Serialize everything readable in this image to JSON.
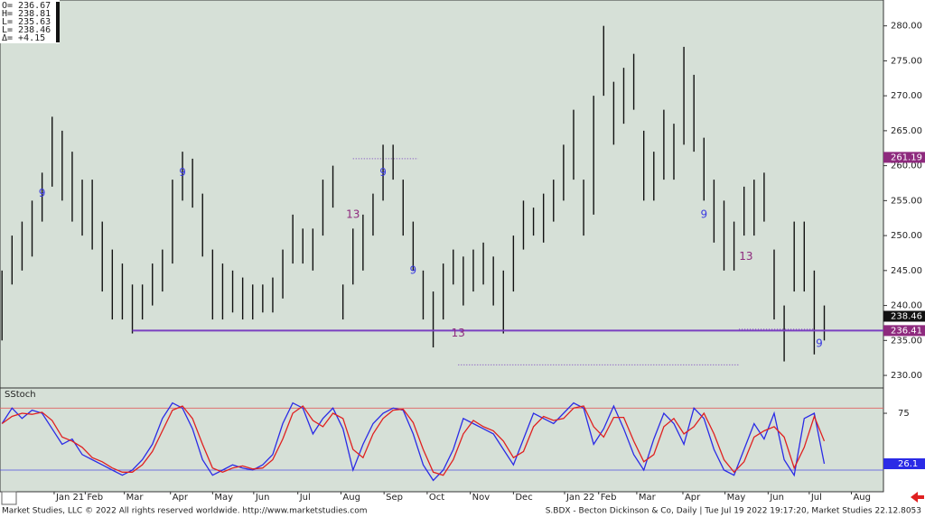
{
  "ohlc_box": [
    "O= 236.67",
    "H= 238.81",
    "L= 235.63",
    "L= 238.46",
    "Δ=  +4.15"
  ],
  "footer_left": "Market Studies, LLC © 2022 All rights reserved worldwide. http://www.marketstudies.com",
  "footer_right": "S.BDX - Becton Dickinson & Co, Daily | Tue Jul 19 2022 19:17:20, Market Studies 22.12.8053",
  "chart_data": [
    {
      "type": "ohlc",
      "color": "#111111",
      "xlim": [
        -0.2,
        87.9
      ],
      "ylim": [
        228.2,
        283.7
      ],
      "yticks": [
        {
          "value": 230,
          "label": "230.00"
        },
        {
          "value": 235,
          "label": "235.00"
        },
        {
          "value": 240,
          "label": "240.00"
        },
        {
          "value": 245,
          "label": "245.00"
        },
        {
          "value": 250,
          "label": "250.00"
        },
        {
          "value": 255,
          "label": "255.00"
        },
        {
          "value": 260,
          "label": "260.00"
        },
        {
          "value": 265,
          "label": "265.00"
        },
        {
          "value": 270,
          "label": "270.00"
        },
        {
          "value": 275,
          "label": "275.00"
        },
        {
          "value": 280,
          "label": "280.00"
        }
      ],
      "high": [
        245,
        250,
        252,
        255,
        259,
        267,
        265,
        262,
        258,
        258,
        252,
        248,
        246,
        243,
        243,
        246,
        248,
        258,
        262,
        261,
        256,
        248,
        246,
        245,
        244,
        243,
        243,
        244,
        248,
        253,
        251,
        251,
        258,
        260,
        243,
        251,
        253,
        256,
        263,
        263,
        258,
        252,
        245,
        242,
        246,
        248,
        247,
        248,
        249,
        247,
        245,
        250,
        255,
        254,
        256,
        258,
        263,
        268,
        258,
        270,
        280,
        272,
        274,
        276,
        265,
        262,
        268,
        266,
        277,
        273,
        264,
        258,
        255,
        252,
        257,
        258,
        259,
        248,
        240,
        252,
        252,
        245,
        240
      ],
      "low": [
        235,
        243,
        245,
        247,
        252,
        257,
        255,
        252,
        250,
        248,
        242,
        238,
        238,
        236,
        238,
        240,
        242,
        246,
        255,
        254,
        247,
        238,
        238,
        239,
        238,
        238,
        239,
        239,
        241,
        246,
        246,
        245,
        250,
        254,
        238,
        243,
        245,
        250,
        255,
        258,
        250,
        245,
        238,
        234,
        238,
        243,
        240,
        242,
        243,
        240,
        236,
        242,
        248,
        250,
        249,
        252,
        255,
        258,
        250,
        253,
        270,
        263,
        266,
        268,
        255,
        255,
        258,
        258,
        263,
        262,
        255,
        249,
        245,
        245,
        250,
        250,
        252,
        238,
        232,
        242,
        242,
        233,
        235
      ],
      "levels": [
        {
          "value": 261.19,
          "label": "261.19",
          "color": "#8e2a7e"
        },
        {
          "value": 238.46,
          "label": "238.46",
          "color": "#111111"
        },
        {
          "value": 236.41,
          "label": "236.41",
          "color": "#8e2a7e",
          "line_color": "#7a3fc0",
          "from": 13
        }
      ],
      "dotted_levels": [
        {
          "value": 261,
          "from": 35,
          "to": 41.5
        },
        {
          "value": 231.5,
          "from": 45.5,
          "to": 73.5
        },
        {
          "value": 236.6,
          "from": 73.5,
          "to": 81
        }
      ],
      "annotations": [
        {
          "text": "9",
          "x": 4,
          "y": 256,
          "color": "#3a3ae0"
        },
        {
          "text": "9",
          "x": 18,
          "y": 259,
          "color": "#3a3ae0"
        },
        {
          "text": "13",
          "x": 35,
          "y": 253,
          "color": "#8e2a7e"
        },
        {
          "text": "9",
          "x": 38,
          "y": 259,
          "color": "#3a3ae0"
        },
        {
          "text": "9",
          "x": 41,
          "y": 245,
          "color": "#3a3ae0"
        },
        {
          "text": "13",
          "x": 45.5,
          "y": 236,
          "color": "#8e2a7e"
        },
        {
          "text": "9",
          "x": 70,
          "y": 253,
          "color": "#3a3ae0"
        },
        {
          "text": "13",
          "x": 74.2,
          "y": 247,
          "color": "#8e2a7e"
        },
        {
          "text": "9",
          "x": 81.5,
          "y": 234.5,
          "color": "#3a3ae0"
        }
      ]
    },
    {
      "type": "line",
      "title": "SStoch",
      "xlim": [
        -0.2,
        87.9
      ],
      "ylim": [
        -1,
        99.5
      ],
      "yticks": [
        75
      ],
      "xticks": [
        {
          "value": 5.2,
          "label": "Jan 21"
        },
        {
          "value": 8.3,
          "label": "Feb"
        },
        {
          "value": 12.2,
          "label": "Mar"
        },
        {
          "value": 16.8,
          "label": "Apr"
        },
        {
          "value": 21,
          "label": "May"
        },
        {
          "value": 25.1,
          "label": "Jun"
        },
        {
          "value": 29.5,
          "label": "Jul"
        },
        {
          "value": 33.8,
          "label": "Aug"
        },
        {
          "value": 38.1,
          "label": "Sep"
        },
        {
          "value": 42.4,
          "label": "Oct"
        },
        {
          "value": 46.7,
          "label": "Nov"
        },
        {
          "value": 51,
          "label": "Dec"
        },
        {
          "value": 56.1,
          "label": "Jan 22"
        },
        {
          "value": 59.5,
          "label": "Feb"
        },
        {
          "value": 63.3,
          "label": "Mar"
        },
        {
          "value": 67.9,
          "label": "Apr"
        },
        {
          "value": 72.1,
          "label": "May"
        },
        {
          "value": 76.4,
          "label": "Jun"
        },
        {
          "value": 80.5,
          "label": "Jul"
        },
        {
          "value": 84.7,
          "label": "Aug"
        }
      ],
      "levels": [
        {
          "value": 80,
          "color": "#e06060"
        },
        {
          "value": 20,
          "color": "#5050e0"
        }
      ],
      "series": [
        {
          "color": "#2b2be6",
          "values": [
            65,
            80,
            70,
            78,
            75,
            60,
            45,
            50,
            35,
            30,
            25,
            20,
            15,
            20,
            30,
            45,
            70,
            85,
            80,
            60,
            30,
            15,
            20,
            25,
            22,
            20,
            25,
            35,
            65,
            85,
            80,
            55,
            70,
            80,
            60,
            20,
            45,
            65,
            75,
            80,
            78,
            55,
            25,
            10,
            20,
            40,
            70,
            65,
            60,
            55,
            40,
            25,
            50,
            75,
            70,
            65,
            75,
            85,
            80,
            45,
            60,
            82,
            60,
            35,
            20,
            50,
            75,
            65,
            45,
            80,
            70,
            40,
            20,
            15,
            40,
            65,
            50,
            75,
            30,
            15,
            70,
            75,
            26.1
          ]
        },
        {
          "color": "#e02020",
          "values": [
            65,
            72,
            75,
            74,
            76,
            68,
            52,
            48,
            42,
            32,
            28,
            22,
            18,
            18,
            25,
            38,
            58,
            78,
            82,
            70,
            45,
            22,
            18,
            22,
            24,
            21,
            22,
            30,
            50,
            75,
            82,
            68,
            62,
            75,
            70,
            40,
            32,
            55,
            70,
            78,
            79,
            66,
            40,
            18,
            15,
            30,
            55,
            68,
            62,
            58,
            48,
            32,
            38,
            62,
            72,
            68,
            70,
            80,
            82,
            62,
            52,
            71,
            71,
            48,
            28,
            35,
            62,
            70,
            55,
            62,
            75,
            55,
            30,
            18,
            28,
            52,
            58,
            62,
            52,
            22,
            42,
            72,
            48
          ]
        }
      ]
    }
  ]
}
